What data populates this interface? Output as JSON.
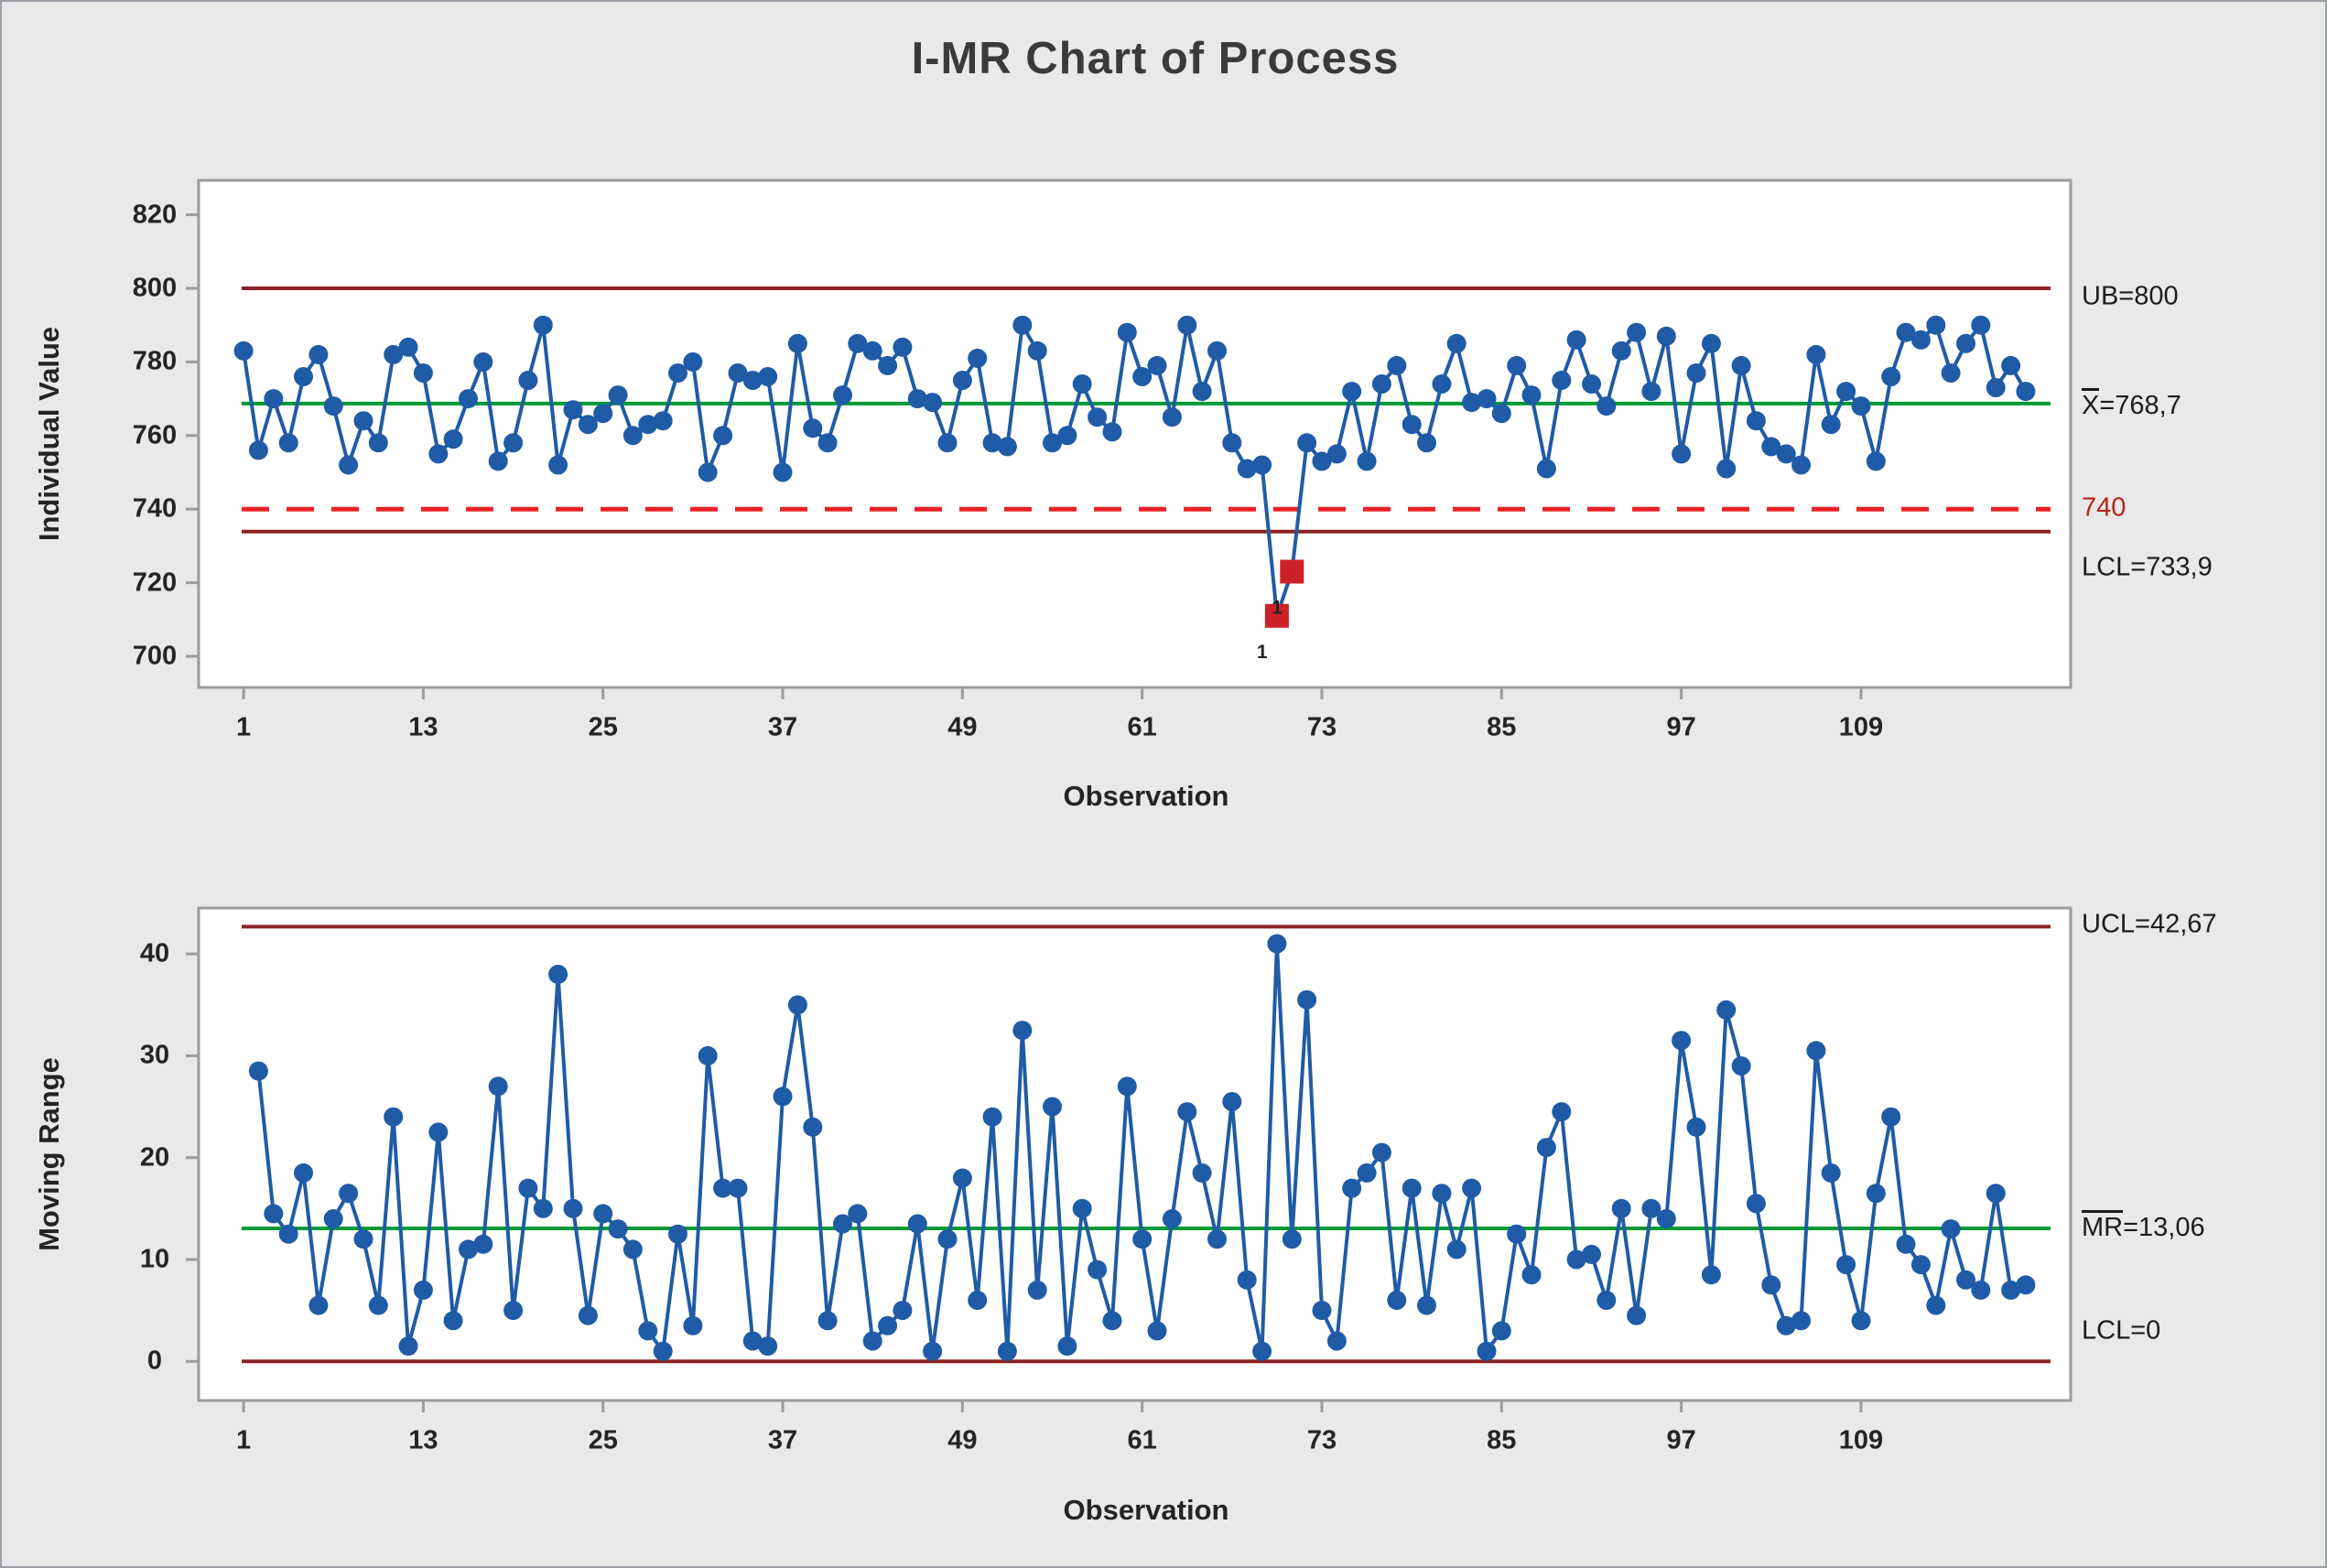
{
  "window": {
    "title": "I-MR Chart of Process"
  },
  "colors": {
    "series_blue": "#1f5ba6",
    "center_green": "#009933",
    "limit_dark_red": "#8c2322",
    "spec_red": "#ec2227",
    "violation_red": "#cd2128",
    "frame_gray": "#9c9c9c",
    "panel_white": "#ffffff",
    "text_dark": "#242424",
    "background": "#e9e9e9"
  },
  "chart_data": [
    {
      "type": "line",
      "name": "individuals-chart",
      "ylabel": "Individual Value",
      "xlabel": "Observation",
      "yticks": [
        820,
        800,
        780,
        760,
        740,
        720,
        700
      ],
      "xticks": [
        1,
        13,
        25,
        37,
        49,
        61,
        73,
        85,
        97,
        109
      ],
      "ylim": [
        691,
        829
      ],
      "x_start": 1,
      "values": [
        783,
        756,
        770,
        758,
        776,
        782,
        768,
        752,
        764,
        758,
        782,
        784,
        777,
        755,
        759,
        770,
        780,
        753,
        758,
        775,
        790,
        752,
        767,
        763,
        766,
        771,
        760,
        763,
        764,
        777,
        780,
        750,
        760,
        777,
        775,
        776,
        750,
        785,
        762,
        758,
        771,
        785,
        783,
        779,
        784,
        770,
        769,
        758,
        775,
        781,
        758,
        757,
        790,
        783,
        758,
        760,
        774,
        765,
        761,
        788,
        776,
        779,
        765,
        790,
        772,
        783,
        758,
        751,
        752,
        711,
        723,
        758,
        753,
        755,
        772,
        753,
        774,
        779,
        763,
        758,
        774,
        785,
        769,
        770,
        766,
        779,
        771,
        751,
        775,
        786,
        774,
        768,
        783,
        788,
        772,
        787,
        755,
        777,
        785,
        751,
        779,
        764,
        757,
        755,
        752,
        782,
        763,
        772,
        768,
        753,
        776,
        788,
        786,
        790,
        777,
        785,
        790,
        773,
        779,
        772
      ],
      "upper_limit": {
        "value": 800,
        "label": "UB=800"
      },
      "center_line": {
        "value": 768.7,
        "bar_text": "X",
        "rest_text": "=768,7"
      },
      "spec_line": {
        "value": 740,
        "label": "740"
      },
      "lower_limit": {
        "value": 733.9,
        "label": "LCL=733,9"
      },
      "violations": {
        "indices": [
          70,
          71
        ],
        "point_values": [
          711,
          723
        ],
        "flag_label": "1"
      },
      "legend": "none",
      "grid": "off"
    },
    {
      "type": "line",
      "name": "moving-range-chart",
      "ylabel": "Moving Range",
      "xlabel": "Observation",
      "yticks": [
        40,
        30,
        20,
        10,
        0
      ],
      "xticks": [
        1,
        13,
        25,
        37,
        49,
        61,
        73,
        85,
        97,
        109
      ],
      "ylim": [
        -5,
        44.5
      ],
      "x_start": 2,
      "values": [
        28.5,
        14.5,
        12.5,
        18.5,
        5.5,
        14,
        16.5,
        12,
        5.5,
        24,
        1.5,
        7,
        22.5,
        4,
        11,
        11.5,
        27,
        5,
        17,
        15,
        38,
        15,
        4.5,
        14.5,
        13,
        11,
        3,
        1,
        12.5,
        3.5,
        30,
        17,
        17,
        2,
        1.5,
        26,
        35,
        23,
        4,
        13.5,
        14.5,
        2,
        3.5,
        5,
        13.5,
        1,
        12,
        18,
        6,
        24,
        1,
        32.5,
        7,
        25,
        1.5,
        15,
        9,
        4,
        27,
        12,
        3,
        14,
        24.5,
        18.5,
        12,
        25.5,
        8,
        1,
        41,
        12,
        35.5,
        5,
        2,
        17,
        18.5,
        20.5,
        6,
        17,
        5.5,
        16.5,
        11,
        17,
        1,
        3,
        12.5,
        8.5,
        21,
        24.5,
        10,
        10.5,
        6,
        15,
        4.5,
        15,
        14,
        31.5,
        23,
        8.5,
        34.5,
        29,
        15.5,
        7.5,
        3.5,
        4,
        30.5,
        18.5,
        9.5,
        4,
        16.5,
        24,
        11.5,
        9.5,
        5.5,
        13,
        8,
        7,
        16.5,
        7,
        7.5
      ],
      "upper_limit": {
        "value": 42.67,
        "label": "UCL=42,67"
      },
      "center_line": {
        "value": 13.06,
        "bar_text": "MR",
        "rest_text": "=13,06"
      },
      "lower_limit": {
        "value": 0,
        "label": "LCL=0"
      },
      "legend": "none",
      "grid": "off"
    }
  ]
}
